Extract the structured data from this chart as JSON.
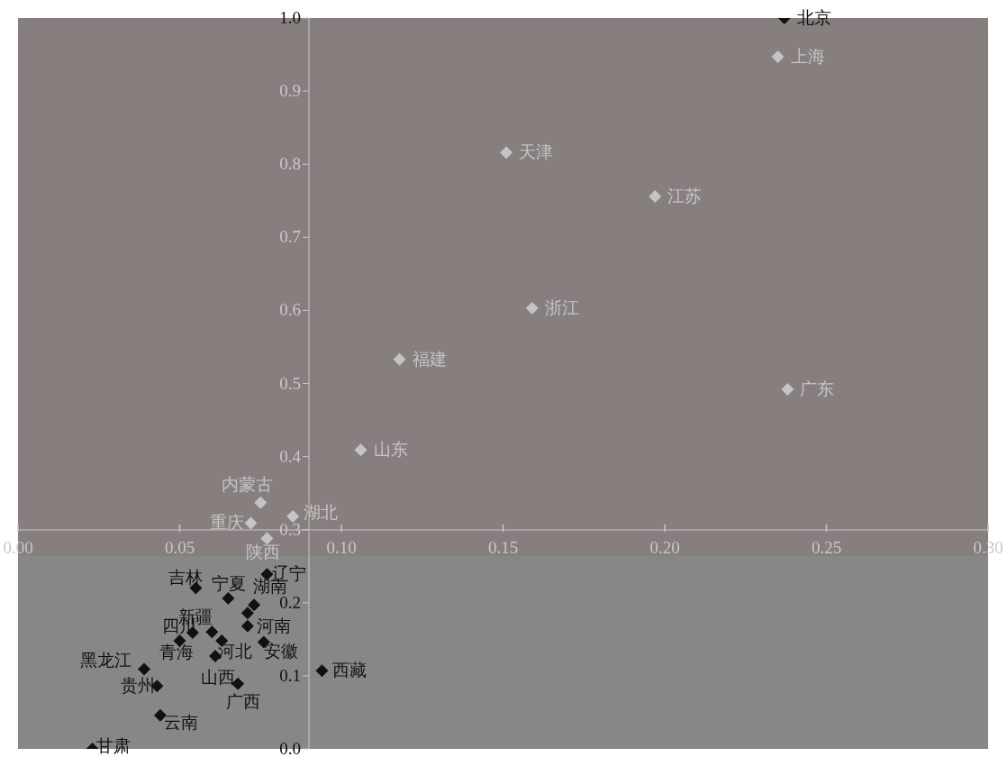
{
  "chart_data": {
    "type": "scatter",
    "marker": "diamond",
    "xlim": [
      0,
      0.3
    ],
    "ylim": [
      0,
      1.0
    ],
    "xticks": [
      {
        "value": 0,
        "label": "0.00"
      },
      0.05,
      {
        "value": 0.1,
        "label": "0.10"
      },
      0.15,
      {
        "value": 0.2,
        "label": "0.20"
      },
      0.25,
      {
        "value": 0.3,
        "label": "0.30"
      }
    ],
    "yticks": [
      {
        "value": 0,
        "label": "0.0"
      },
      0.1,
      0.2,
      0.3,
      0.4,
      0.5,
      0.6,
      0.7,
      0.8,
      0.9,
      {
        "value": 1,
        "label": "1.0"
      }
    ],
    "bands": [
      {
        "axis": "y",
        "from": 0.264,
        "to": 1.0,
        "color": "#877f7d"
      },
      {
        "axis": "y",
        "from": 0,
        "to": 0.264,
        "color": "#868887"
      }
    ],
    "series": [
      {
        "color": "#c4c4c8",
        "x": [
          0.235,
          0.151,
          0.197,
          0.159,
          0.118,
          0.238,
          0.106,
          0.075,
          0.085,
          0.072,
          0.077
        ],
        "values": [
          0.947,
          0.816,
          0.756,
          0.603,
          0.533,
          0.492,
          0.409,
          0.337,
          0.318,
          0.309,
          0.288
        ]
      },
      {
        "color": "#111111",
        "x": [
          0.237,
          0.077,
          0.055,
          0.065,
          0.073,
          0.071,
          0.071,
          0.054,
          0.06,
          0.05,
          0.063,
          0.076,
          0.061,
          0.039,
          0.043,
          0.068,
          0.044,
          0.023,
          0.094
        ],
        "values": [
          1.0,
          0.239,
          0.22,
          0.206,
          0.197,
          0.186,
          0.168,
          0.159,
          0.16,
          0.148,
          0.148,
          0.146,
          0.127,
          0.109,
          0.086,
          0.089,
          0.046,
          0.0,
          0.107
        ]
      }
    ],
    "annotations": [
      {
        "text": "北京",
        "x": 0.237,
        "y": 1.0
      },
      {
        "text": "上海",
        "x": 0.235,
        "y": 0.947
      },
      {
        "text": "天津",
        "x": 0.151,
        "y": 0.816
      },
      {
        "text": "江苏",
        "x": 0.197,
        "y": 0.756
      },
      {
        "text": "浙江",
        "x": 0.159,
        "y": 0.603
      },
      {
        "text": "福建",
        "x": 0.118,
        "y": 0.533
      },
      {
        "text": "广东",
        "x": 0.238,
        "y": 0.492
      },
      {
        "text": "山东",
        "x": 0.106,
        "y": 0.409
      },
      {
        "text": "内蒙古",
        "x": 0.075,
        "y": 0.337
      },
      {
        "text": "湖北",
        "x": 0.085,
        "y": 0.318
      },
      {
        "text": "重庆",
        "x": 0.072,
        "y": 0.309
      },
      {
        "text": "陕西",
        "x": 0.077,
        "y": 0.288
      },
      {
        "text": "辽宁",
        "x": 0.077,
        "y": 0.239
      },
      {
        "text": "吉林",
        "x": 0.055,
        "y": 0.22
      },
      {
        "text": "宁夏",
        "x": 0.065,
        "y": 0.206
      },
      {
        "text": "湖南",
        "x": 0.073,
        "y": 0.197
      },
      {
        "text": "河南",
        "x": 0.071,
        "y": 0.168
      },
      {
        "text": "新疆",
        "x": 0.06,
        "y": 0.16
      },
      {
        "text": "四川",
        "x": 0.05,
        "y": 0.148
      },
      {
        "text": "河北",
        "x": 0.063,
        "y": 0.148
      },
      {
        "text": "安徽",
        "x": 0.076,
        "y": 0.146
      },
      {
        "text": "青海",
        "x": 0.054,
        "y": 0.159
      },
      {
        "text": "山西",
        "x": 0.061,
        "y": 0.127
      },
      {
        "text": "黑龙江",
        "x": 0.039,
        "y": 0.109
      },
      {
        "text": "贵州",
        "x": 0.043,
        "y": 0.086
      },
      {
        "text": "广西",
        "x": 0.068,
        "y": 0.089
      },
      {
        "text": "云南",
        "x": 0.044,
        "y": 0.046
      },
      {
        "text": "甘肃",
        "x": 0.023,
        "y": 0.0
      },
      {
        "text": "西藏",
        "x": 0.094,
        "y": 0.107
      }
    ]
  }
}
